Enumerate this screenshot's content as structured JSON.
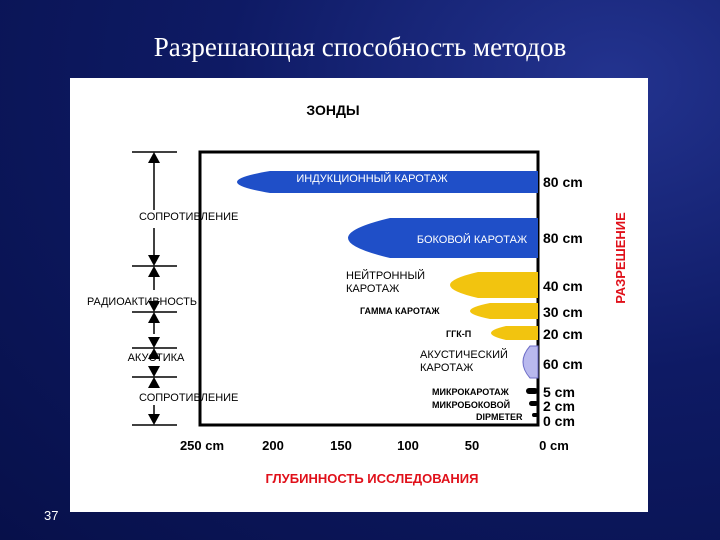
{
  "slide": {
    "title": "Разрешающая способность методов",
    "number": "37"
  },
  "diagram": {
    "header": "ЗОНДЫ",
    "x_axis_title": "ГЛУБИННОСТЬ ИССЛЕДОВАНИЯ",
    "y_axis_title": "РАЗРЕШЕНИЕ",
    "x_ticks": [
      "250 cm",
      "200",
      "150",
      "100",
      "50",
      "0 cm"
    ],
    "left_labels": [
      "СОПРОТИВЛЕНИЕ",
      "РАДИОАКТИВНОСТЬ",
      "АКУСТИКА",
      "СОПРОТИВЛЕНИЕ"
    ],
    "methods": [
      {
        "name": "ИНДУКЦИОННЫЙ КАРОТАЖ",
        "resolution": "80 cm",
        "depth_cm": 250,
        "color": "#1f4fc8"
      },
      {
        "name": "БОКОВОЙ КАРОТАЖ",
        "resolution": "80 cm",
        "depth_cm": 155,
        "color": "#1f4fc8"
      },
      {
        "name_line1": "НЕЙТРОННЫЙ",
        "name_line2": "КАРОТАЖ",
        "resolution": "40 cm",
        "depth_cm": 70,
        "color": "#f2c40f"
      },
      {
        "name": "ГАММА КАРОТАЖ",
        "resolution": "30 cm",
        "depth_cm": 50,
        "color": "#f2c40f"
      },
      {
        "name": "ГГК-П",
        "resolution": "20 cm",
        "depth_cm": 35,
        "color": "#f2c40f"
      },
      {
        "name_line1": "АКУСТИЧЕСКИЙ",
        "name_line2": "КАРОТАЖ",
        "resolution": "60 cm",
        "depth_cm": 8,
        "color": "#b9b9ee"
      },
      {
        "name": "МИКРОКАРОТАЖ",
        "resolution": "5 cm",
        "depth_cm": 3,
        "color": "#000000"
      },
      {
        "name": "МИКРОБОКОВОЙ",
        "resolution": "2 cm",
        "depth_cm": 2,
        "color": "#000000"
      },
      {
        "name": "DIPMETER",
        "resolution": "0 cm",
        "depth_cm": 1,
        "color": "#000000"
      }
    ]
  }
}
